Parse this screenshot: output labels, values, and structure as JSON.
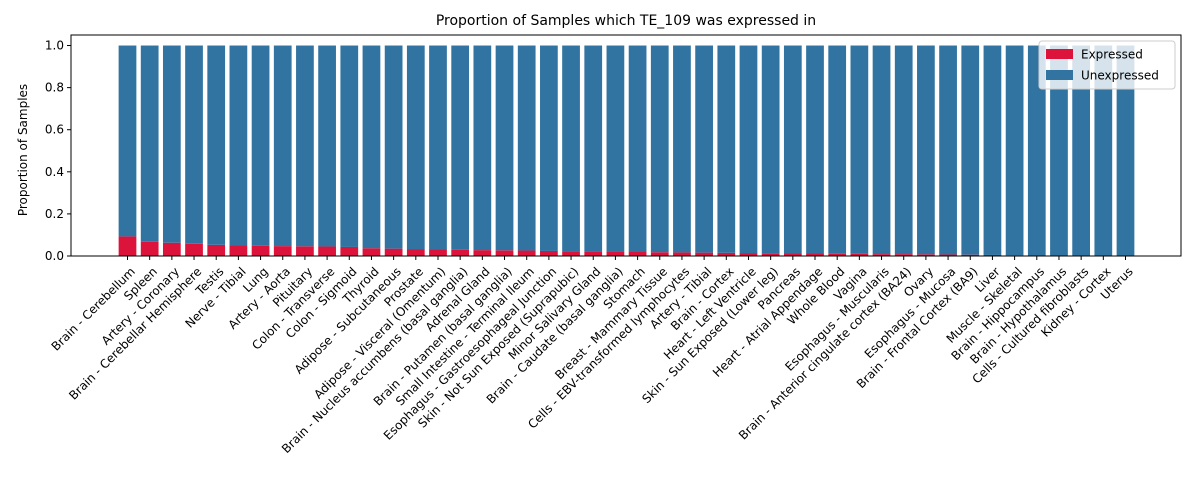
{
  "chart_data": {
    "type": "bar",
    "stacked": true,
    "title": "Proportion of Samples which TE_109 was expressed in",
    "xlabel": "",
    "ylabel": "Proportion of Samples",
    "ylim": [
      0,
      1.05
    ],
    "yticks": [
      "0.0",
      "0.2",
      "0.4",
      "0.6",
      "0.8",
      "1.0"
    ],
    "legend_position": "top-right",
    "categories": [
      "Brain - Cerebellum",
      "Spleen",
      "Artery - Coronary",
      "Brain - Cerebellar Hemisphere",
      "Testis",
      "Nerve - Tibial",
      "Lung",
      "Artery - Aorta",
      "Pituitary",
      "Colon - Transverse",
      "Colon - Sigmoid",
      "Thyroid",
      "Adipose - Subcutaneous",
      "Prostate",
      "Adipose - Visceral (Omentum)",
      "Brain - Nucleus accumbens (basal ganglia)",
      "Adrenal Gland",
      "Brain - Putamen (basal ganglia)",
      "Small Intestine - Terminal Ileum",
      "Esophagus - Gastroesophageal Junction",
      "Skin - Not Sun Exposed (Suprapubic)",
      "Minor Salivary Gland",
      "Brain - Caudate (basal ganglia)",
      "Stomach",
      "Breast - Mammary Tissue",
      "Cells - EBV-transformed lymphocytes",
      "Artery - Tibial",
      "Brain - Cortex",
      "Heart - Left Ventricle",
      "Skin - Sun Exposed (Lower leg)",
      "Pancreas",
      "Heart - Atrial Appendage",
      "Whole Blood",
      "Vagina",
      "Esophagus - Muscularis",
      "Brain - Anterior cingulate cortex (BA24)",
      "Ovary",
      "Esophagus - Mucosa",
      "Brain - Frontal Cortex (BA9)",
      "Liver",
      "Muscle - Skeletal",
      "Brain - Hippocampus",
      "Brain - Hypothalamus",
      "Cells - Cultured fibroblasts",
      "Kidney - Cortex",
      "Uterus"
    ],
    "series": [
      {
        "name": "Expressed",
        "color": "#dc143c",
        "values": [
          0.093,
          0.068,
          0.063,
          0.058,
          0.053,
          0.05,
          0.048,
          0.047,
          0.046,
          0.045,
          0.043,
          0.037,
          0.035,
          0.033,
          0.031,
          0.029,
          0.028,
          0.027,
          0.026,
          0.024,
          0.023,
          0.022,
          0.021,
          0.019,
          0.018,
          0.017,
          0.016,
          0.015,
          0.014,
          0.013,
          0.012,
          0.012,
          0.011,
          0.01,
          0.009,
          0.009,
          0.008,
          0.007,
          0.006,
          0.005,
          0.004,
          0.0,
          0.0,
          0.0,
          0.0,
          0.0
        ]
      },
      {
        "name": "Unexpressed",
        "color": "#3274a1",
        "values": [
          0.907,
          0.932,
          0.937,
          0.942,
          0.947,
          0.95,
          0.952,
          0.953,
          0.954,
          0.955,
          0.957,
          0.963,
          0.965,
          0.967,
          0.969,
          0.971,
          0.972,
          0.973,
          0.974,
          0.976,
          0.977,
          0.978,
          0.979,
          0.981,
          0.982,
          0.983,
          0.984,
          0.985,
          0.986,
          0.987,
          0.988,
          0.988,
          0.989,
          0.99,
          0.991,
          0.991,
          0.992,
          0.993,
          0.994,
          0.995,
          0.996,
          1.0,
          1.0,
          1.0,
          1.0,
          1.0
        ]
      }
    ]
  }
}
